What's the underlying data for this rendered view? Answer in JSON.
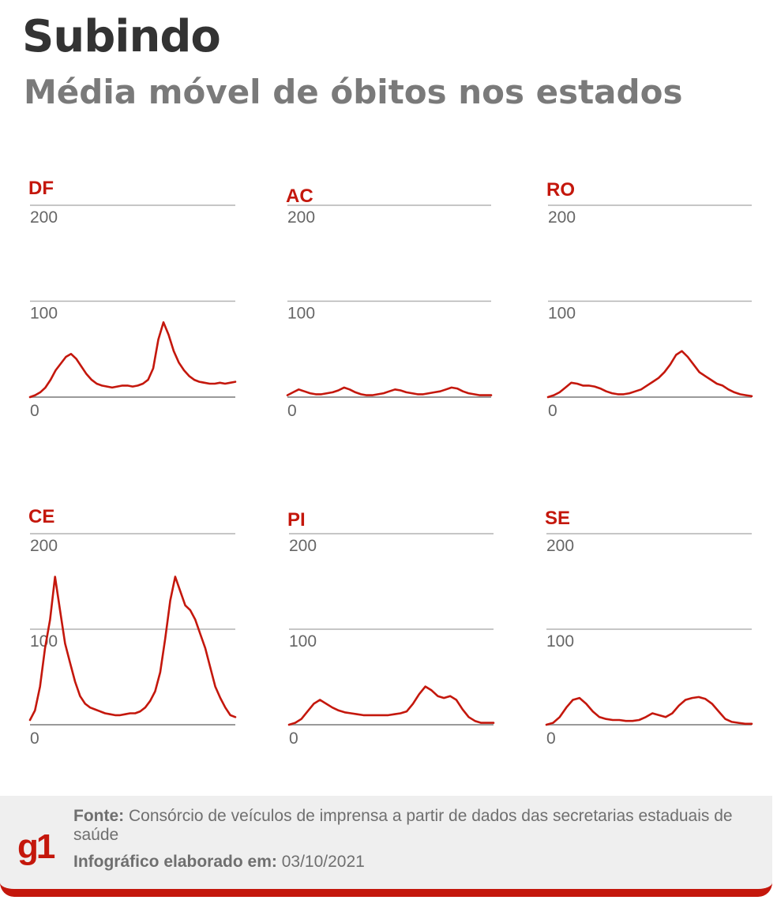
{
  "header": {
    "title": "Subindo",
    "subtitle": "Média móvel de óbitos nos estados"
  },
  "colors": {
    "line": "#c4170c",
    "grid": "#b3b3b3",
    "tick": "#666666",
    "label": "#c4170c"
  },
  "chart_data": [
    {
      "type": "line",
      "title": "DF",
      "ylim": [
        0,
        200
      ],
      "yticks": [
        0,
        100,
        200
      ],
      "series": [
        {
          "values": [
            0,
            2,
            5,
            10,
            18,
            28,
            35,
            42,
            45,
            40,
            32,
            24,
            18,
            14,
            12,
            11,
            10,
            11,
            12,
            12,
            11,
            12,
            14,
            18,
            30,
            60,
            78,
            65,
            48,
            36,
            28,
            22,
            18,
            16,
            15,
            14,
            14,
            15,
            14,
            15,
            16
          ]
        }
      ]
    },
    {
      "type": "line",
      "title": "AC",
      "ylim": [
        0,
        200
      ],
      "yticks": [
        0,
        100,
        200
      ],
      "series": [
        {
          "values": [
            2,
            5,
            8,
            6,
            4,
            3,
            3,
            4,
            5,
            7,
            10,
            8,
            5,
            3,
            2,
            2,
            3,
            4,
            6,
            8,
            7,
            5,
            4,
            3,
            3,
            4,
            5,
            6,
            8,
            10,
            9,
            6,
            4,
            3,
            2,
            2,
            2
          ]
        }
      ]
    },
    {
      "type": "line",
      "title": "RO",
      "ylim": [
        0,
        200
      ],
      "yticks": [
        0,
        100,
        200
      ],
      "series": [
        {
          "values": [
            0,
            2,
            5,
            10,
            15,
            14,
            12,
            12,
            11,
            9,
            6,
            4,
            3,
            3,
            4,
            6,
            8,
            12,
            16,
            20,
            26,
            34,
            44,
            48,
            42,
            34,
            26,
            22,
            18,
            14,
            12,
            8,
            5,
            3,
            2,
            1
          ]
        }
      ]
    },
    {
      "type": "line",
      "title": "CE",
      "ylim": [
        0,
        200
      ],
      "yticks": [
        0,
        100,
        200
      ],
      "series": [
        {
          "values": [
            5,
            15,
            40,
            80,
            110,
            155,
            120,
            85,
            65,
            45,
            30,
            22,
            18,
            16,
            14,
            12,
            11,
            10,
            10,
            11,
            12,
            12,
            14,
            18,
            25,
            35,
            55,
            90,
            130,
            155,
            140,
            125,
            120,
            110,
            95,
            80,
            60,
            40,
            28,
            18,
            10,
            8
          ]
        }
      ]
    },
    {
      "type": "line",
      "title": "PI",
      "ylim": [
        0,
        200
      ],
      "yticks": [
        0,
        100,
        200
      ],
      "series": [
        {
          "values": [
            0,
            2,
            6,
            14,
            22,
            26,
            22,
            18,
            15,
            13,
            12,
            11,
            10,
            10,
            10,
            10,
            10,
            11,
            12,
            14,
            22,
            32,
            40,
            36,
            30,
            28,
            30,
            26,
            16,
            8,
            4,
            2,
            2,
            2
          ]
        }
      ]
    },
    {
      "type": "line",
      "title": "SE",
      "ylim": [
        0,
        200
      ],
      "yticks": [
        0,
        100,
        200
      ],
      "series": [
        {
          "values": [
            0,
            2,
            8,
            18,
            26,
            28,
            22,
            14,
            8,
            6,
            5,
            5,
            4,
            4,
            5,
            8,
            12,
            10,
            8,
            12,
            20,
            26,
            28,
            29,
            27,
            22,
            14,
            6,
            3,
            2,
            1,
            1
          ]
        }
      ]
    }
  ],
  "footer": {
    "logo": "g1",
    "source_label": "Fonte:",
    "source_text": "Consórcio de veículos de imprensa a partir de dados das secretarias estaduais de saúde",
    "date_label": "Infográfico elaborado em:",
    "date_value": "03/10/2021"
  }
}
